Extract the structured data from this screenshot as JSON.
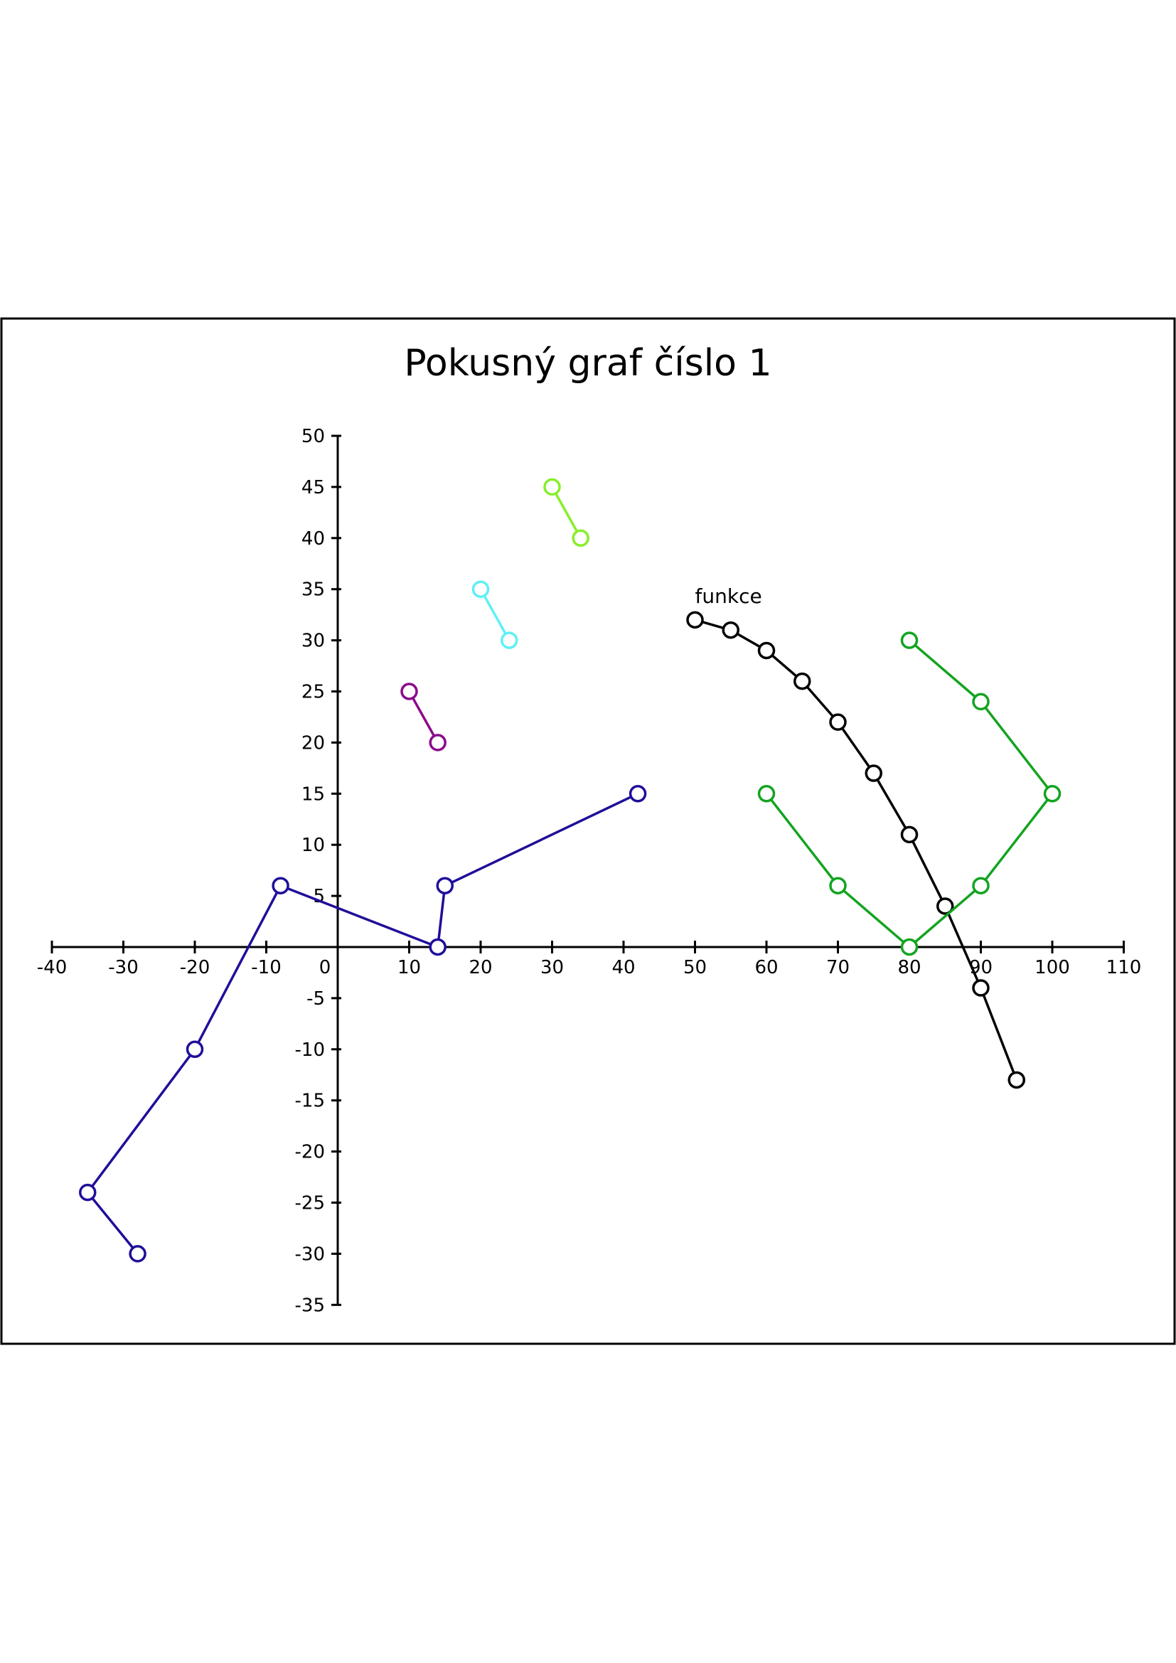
{
  "chart_data": {
    "type": "line",
    "title": "Pokusný graf číslo 1",
    "xlabel": "",
    "ylabel": "",
    "xlim": [
      -40,
      110
    ],
    "ylim": [
      -35,
      50
    ],
    "x_ticks": [
      -40,
      -30,
      -20,
      -10,
      0,
      10,
      20,
      30,
      40,
      50,
      60,
      70,
      80,
      90,
      100,
      110
    ],
    "y_ticks": [
      50,
      45,
      40,
      35,
      30,
      25,
      20,
      15,
      10,
      5,
      -5,
      -10,
      -15,
      -20,
      -25,
      -30,
      -35
    ],
    "grid": false,
    "legend": "none",
    "annotations": [
      {
        "text": "funkce",
        "x": 50,
        "y": 32
      }
    ],
    "series": [
      {
        "color": "#1f0f99",
        "x": [
          -28,
          -35,
          -20,
          -8,
          14,
          15,
          42
        ],
        "y": [
          -30,
          -24,
          -10,
          6,
          0,
          6,
          15
        ]
      },
      {
        "color": "#8b0a8b",
        "x": [
          10,
          14
        ],
        "y": [
          25,
          20
        ]
      },
      {
        "color": "#5ef0f5",
        "x": [
          20,
          24
        ],
        "y": [
          35,
          30
        ]
      },
      {
        "color": "#86ef2a",
        "x": [
          30,
          34
        ],
        "y": [
          45,
          40
        ]
      },
      {
        "color": "#000000",
        "x": [
          50,
          55,
          60,
          65,
          70,
          75,
          80,
          85,
          90,
          95
        ],
        "y": [
          32,
          31,
          29,
          26,
          22,
          17,
          11,
          4,
          -4,
          -13
        ]
      },
      {
        "color": "#13a41f",
        "x": [
          60,
          70,
          80,
          90,
          100,
          90,
          80
        ],
        "y": [
          15,
          6,
          0,
          6,
          15,
          24,
          30
        ]
      }
    ]
  }
}
